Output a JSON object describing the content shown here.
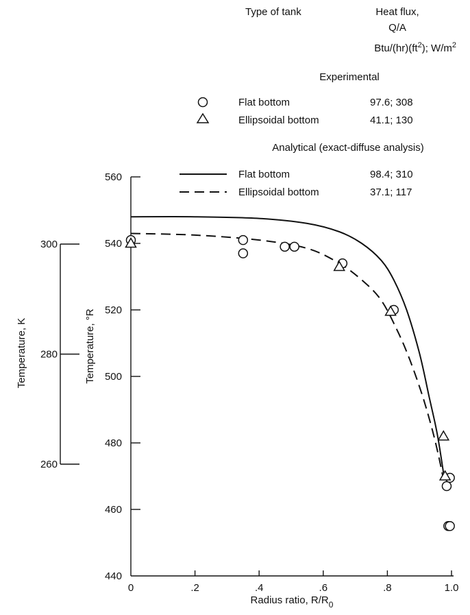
{
  "chart_data": {
    "type": "scatter",
    "xlabel": "Radius ratio, R/R",
    "xlabel_sub": "0",
    "ylabel": "Temperature, °R",
    "ylabel_secondary": "Temperature, K",
    "xlim": [
      0,
      1.0
    ],
    "ylim": [
      440,
      560
    ],
    "secondary_ylim_K": [
      260,
      300
    ],
    "x_ticks": [
      {
        "value": 0,
        "label": "0"
      },
      {
        "value": 0.2,
        "label": ".2"
      },
      {
        "value": 0.4,
        "label": ".4"
      },
      {
        "value": 0.6,
        "label": ".6"
      },
      {
        "value": 0.8,
        "label": ".8"
      },
      {
        "value": 1.0,
        "label": "1.0"
      }
    ],
    "y_ticks": [
      {
        "value": 440,
        "label": "440"
      },
      {
        "value": 460,
        "label": "460"
      },
      {
        "value": 480,
        "label": "480"
      },
      {
        "value": 500,
        "label": "500"
      },
      {
        "value": 520,
        "label": "520"
      },
      {
        "value": 540,
        "label": "540"
      },
      {
        "value": 560,
        "label": "560"
      }
    ],
    "y2_ticks": [
      {
        "value": 260,
        "label": "260"
      },
      {
        "value": 280,
        "label": "280"
      },
      {
        "value": 300,
        "label": "300"
      }
    ],
    "legend": {
      "header_type": "Type of tank",
      "header_flux": "Heat flux,",
      "header_flux_line2": "Q/A",
      "header_units": "Btu/(hr)(ft",
      "header_units_sup": "2",
      "header_units_tail": "); W/m",
      "header_units_sup2": "2",
      "experimental_title": "Experimental",
      "analytical_title": "Analytical (exact-diffuse analysis)",
      "entries": [
        {
          "label": "Flat bottom",
          "value": "97.6; 308",
          "marker": "circle"
        },
        {
          "label": "Ellipsoidal bottom",
          "value": "41.1; 130",
          "marker": "triangle"
        },
        {
          "label": "Flat bottom",
          "value": "98.4; 310",
          "marker": "solid-line"
        },
        {
          "label": "Ellipsoidal bottom",
          "value": "37.1; 117",
          "marker": "dashed-line"
        }
      ]
    },
    "series": [
      {
        "name": "Flat bottom",
        "kind": "experimental",
        "marker": "circle",
        "points": [
          [
            0.0,
            541
          ],
          [
            0.35,
            541
          ],
          [
            0.35,
            537
          ],
          [
            0.48,
            539
          ],
          [
            0.51,
            539
          ],
          [
            0.66,
            534
          ],
          [
            0.82,
            520
          ],
          [
            0.985,
            467
          ],
          [
            0.995,
            469.5
          ],
          [
            0.99,
            455
          ],
          [
            0.995,
            455
          ]
        ]
      },
      {
        "name": "Ellipsoidal bottom",
        "kind": "experimental",
        "marker": "triangle",
        "points": [
          [
            0.0,
            540
          ],
          [
            0.65,
            533
          ],
          [
            0.81,
            519.5
          ],
          [
            0.975,
            482
          ],
          [
            0.98,
            470
          ]
        ]
      },
      {
        "name": "Flat bottom",
        "kind": "analytical",
        "style": "solid",
        "points": [
          [
            0.0,
            548
          ],
          [
            0.2,
            548
          ],
          [
            0.4,
            547.5
          ],
          [
            0.55,
            546
          ],
          [
            0.65,
            543.5
          ],
          [
            0.72,
            540
          ],
          [
            0.78,
            535
          ],
          [
            0.82,
            529
          ],
          [
            0.86,
            520
          ],
          [
            0.9,
            507
          ],
          [
            0.93,
            494
          ],
          [
            0.955,
            483
          ],
          [
            0.975,
            471
          ]
        ]
      },
      {
        "name": "Ellipsoidal bottom",
        "kind": "analytical",
        "style": "dashed",
        "points": [
          [
            0.0,
            543
          ],
          [
            0.2,
            542.5
          ],
          [
            0.4,
            541
          ],
          [
            0.55,
            538.5
          ],
          [
            0.65,
            534
          ],
          [
            0.72,
            529
          ],
          [
            0.78,
            523
          ],
          [
            0.83,
            514
          ],
          [
            0.87,
            505
          ],
          [
            0.91,
            494
          ],
          [
            0.94,
            484
          ],
          [
            0.96,
            476
          ],
          [
            0.975,
            469
          ]
        ]
      }
    ]
  }
}
